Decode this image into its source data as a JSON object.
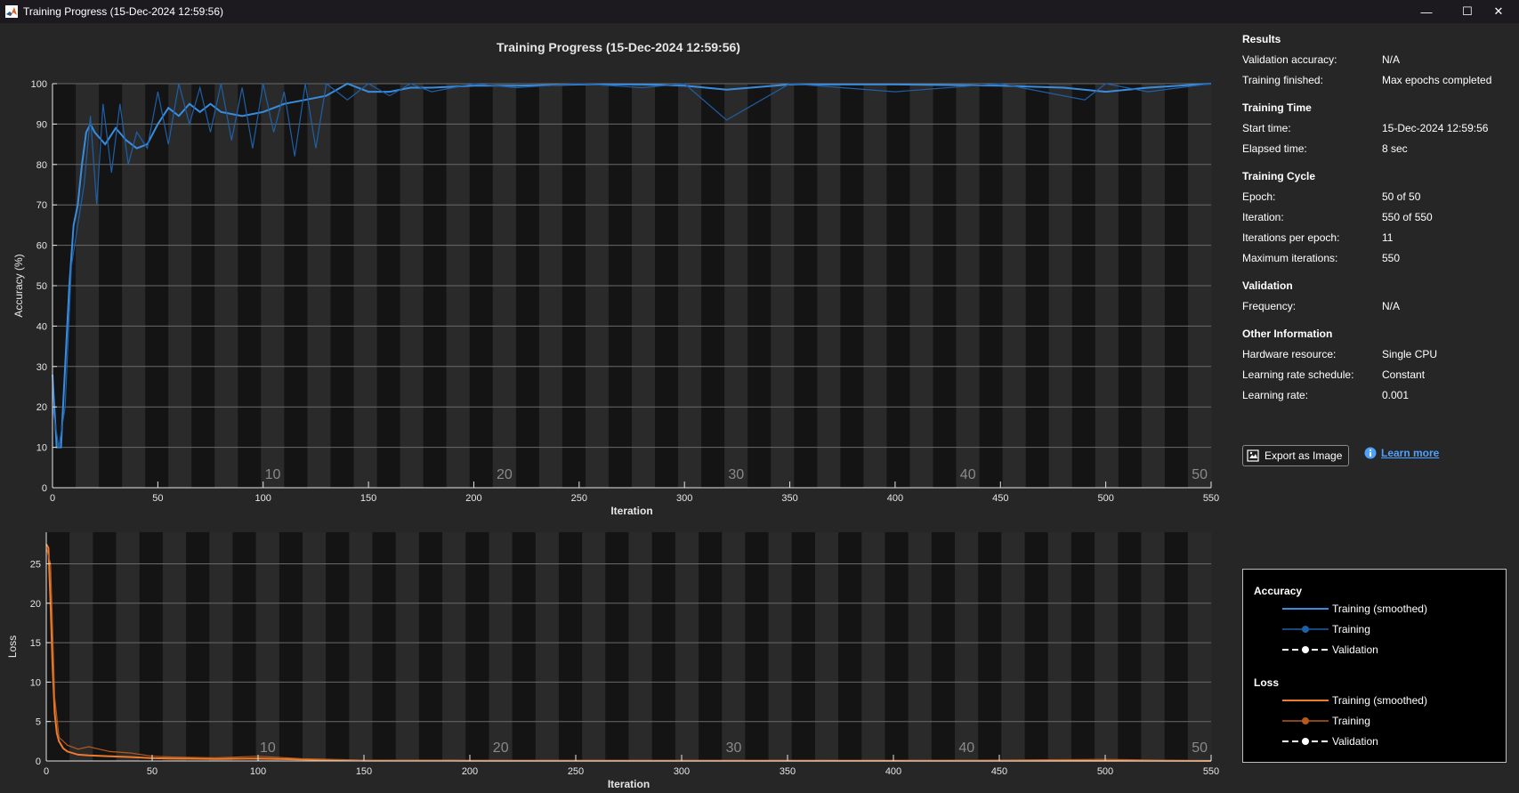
{
  "window": {
    "title": "Training Progress (15-Dec-2024 12:59:56)",
    "minimize_glyph": "—",
    "maximize_glyph": "☐",
    "close_glyph": "✕"
  },
  "figure_title": "Training Progress (15-Dec-2024 12:59:56)",
  "colors": {
    "training_smoothed": "#3a8dde",
    "training_raw": "#1f5fa6",
    "loss_smoothed": "#f07c2b",
    "loss_raw": "#b45a1e",
    "background": "#262626"
  },
  "chart_data": [
    {
      "type": "line",
      "name": "accuracy",
      "xlabel": "Iteration",
      "ylabel": "Accuracy (%)",
      "xlim": [
        0,
        550
      ],
      "ylim": [
        0,
        100
      ],
      "xticks": [
        0,
        50,
        100,
        150,
        200,
        250,
        300,
        350,
        400,
        450,
        500,
        550
      ],
      "yticks": [
        0,
        10,
        20,
        30,
        40,
        50,
        60,
        70,
        80,
        90,
        100
      ],
      "epoch_labels": [
        10,
        20,
        30,
        40,
        50
      ],
      "grid": true,
      "series": [
        {
          "name": "Training (smoothed)",
          "x": [
            0,
            2,
            4,
            6,
            8,
            10,
            12,
            14,
            16,
            18,
            20,
            25,
            30,
            35,
            40,
            45,
            50,
            55,
            60,
            65,
            70,
            75,
            80,
            90,
            100,
            110,
            120,
            130,
            140,
            150,
            160,
            170,
            180,
            200,
            220,
            250,
            280,
            300,
            320,
            350,
            400,
            450,
            480,
            500,
            520,
            550
          ],
          "y": [
            28,
            10,
            10,
            30,
            50,
            65,
            70,
            80,
            88,
            90,
            88,
            85,
            89,
            86,
            84,
            85,
            90,
            94,
            92,
            95,
            93,
            95,
            93,
            92,
            93,
            95,
            96,
            97,
            100,
            98,
            98,
            99,
            99,
            99.5,
            99.5,
            99.8,
            99.8,
            99.5,
            98.5,
            99.8,
            99.8,
            99.5,
            99,
            98,
            99,
            100
          ]
        },
        {
          "name": "Training",
          "x": [
            0,
            3,
            6,
            9,
            12,
            15,
            18,
            21,
            24,
            28,
            32,
            36,
            40,
            45,
            50,
            55,
            60,
            65,
            70,
            75,
            80,
            85,
            90,
            95,
            100,
            105,
            110,
            115,
            120,
            125,
            130,
            140,
            150,
            160,
            170,
            180,
            200,
            220,
            250,
            280,
            300,
            320,
            350,
            400,
            450,
            490,
            500,
            520,
            550
          ],
          "y": [
            20,
            10,
            20,
            55,
            65,
            75,
            92,
            70,
            95,
            78,
            95,
            80,
            88,
            84,
            98,
            85,
            100,
            90,
            99,
            88,
            100,
            86,
            99,
            84,
            100,
            88,
            98,
            82,
            100,
            84,
            100,
            96,
            100,
            97,
            100,
            98,
            100,
            99,
            100,
            99,
            100,
            91,
            100,
            98,
            100,
            96,
            100,
            98,
            100
          ]
        },
        {
          "name": "Validation",
          "x": [],
          "y": []
        }
      ]
    },
    {
      "type": "line",
      "name": "loss",
      "xlabel": "Iteration",
      "ylabel": "Loss",
      "xlim": [
        0,
        550
      ],
      "ylim": [
        0,
        29
      ],
      "xticks": [
        0,
        50,
        100,
        150,
        200,
        250,
        300,
        350,
        400,
        450,
        500,
        550
      ],
      "yticks": [
        0,
        5,
        10,
        15,
        20,
        25
      ],
      "epoch_labels": [
        10,
        20,
        30,
        40,
        50
      ],
      "grid": true,
      "series": [
        {
          "name": "Training (smoothed)",
          "x": [
            0,
            1,
            2,
            3,
            4,
            5,
            6,
            8,
            10,
            15,
            20,
            30,
            40,
            50,
            60,
            80,
            100,
            120,
            150,
            200,
            300,
            400,
            500,
            550
          ],
          "y": [
            27.5,
            27,
            20,
            12,
            6,
            3.5,
            2.5,
            1.6,
            1.2,
            0.8,
            0.7,
            0.6,
            0.5,
            0.35,
            0.3,
            0.25,
            0.3,
            0.2,
            0.05,
            0.03,
            0.03,
            0.02,
            0.03,
            0.01
          ]
        },
        {
          "name": "Training",
          "x": [
            0,
            2,
            4,
            6,
            8,
            10,
            15,
            20,
            30,
            40,
            50,
            60,
            80,
            100,
            120,
            150,
            200,
            300,
            400,
            500,
            550
          ],
          "y": [
            27,
            25,
            8,
            3,
            2.5,
            2,
            1.5,
            1.8,
            1.2,
            1.0,
            0.6,
            0.5,
            0.4,
            0.6,
            0.3,
            0.1,
            0.05,
            0.05,
            0.02,
            0.2,
            0.01
          ]
        },
        {
          "name": "Validation",
          "x": [],
          "y": []
        }
      ]
    }
  ],
  "info": {
    "results_heading": "Results",
    "rows_results": [
      {
        "label": "Validation accuracy:",
        "value": "N/A"
      },
      {
        "label": "Training finished:",
        "value": "Max epochs completed"
      }
    ],
    "time_heading": "Training Time",
    "rows_time": [
      {
        "label": "Start time:",
        "value": "15-Dec-2024 12:59:56"
      },
      {
        "label": "Elapsed time:",
        "value": "8 sec"
      }
    ],
    "cycle_heading": "Training Cycle",
    "rows_cycle": [
      {
        "label": "Epoch:",
        "value": "50 of 50"
      },
      {
        "label": "Iteration:",
        "value": "550 of 550"
      },
      {
        "label": "Iterations per epoch:",
        "value": "11"
      },
      {
        "label": "Maximum iterations:",
        "value": "550"
      }
    ],
    "validation_heading": "Validation",
    "rows_validation": [
      {
        "label": "Frequency:",
        "value": "N/A"
      }
    ],
    "other_heading": "Other Information",
    "rows_other": [
      {
        "label": "Hardware resource:",
        "value": "Single CPU"
      },
      {
        "label": "Learning rate schedule:",
        "value": "Constant"
      },
      {
        "label": "Learning rate:",
        "value": "0.001"
      }
    ]
  },
  "export_label": "Export as Image",
  "learn_more_label": "Learn more",
  "legend": {
    "accuracy_heading": "Accuracy",
    "loss_heading": "Loss",
    "training_smoothed": "Training (smoothed)",
    "training": "Training",
    "validation": "Validation"
  }
}
